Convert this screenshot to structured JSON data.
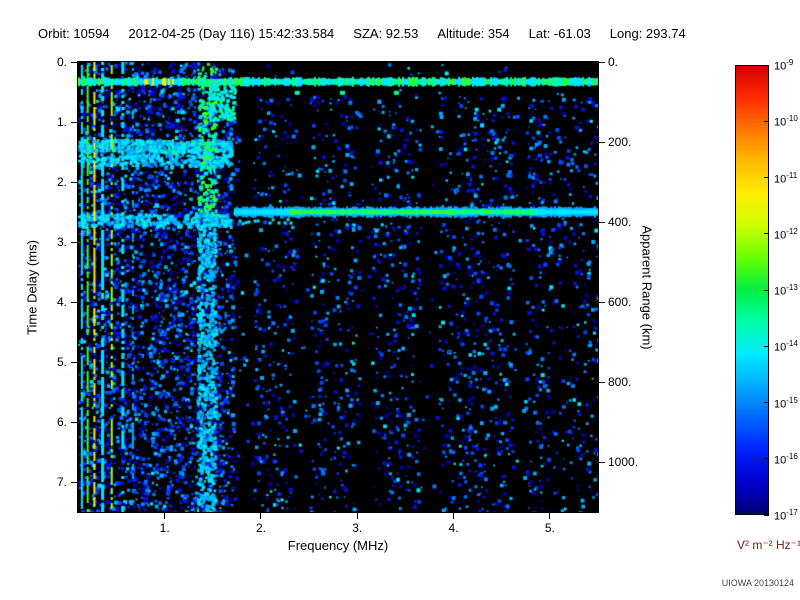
{
  "header": {
    "fields": [
      {
        "label": "Orbit:",
        "value": "10594"
      },
      {
        "label": "",
        "value": "2012-04-25 (Day 116) 15:42:33.584"
      },
      {
        "label": "SZA:",
        "value": "92.53"
      },
      {
        "label": "Altitude:",
        "value": "354"
      },
      {
        "label": "Lat:",
        "value": "-61.03"
      },
      {
        "label": "Long:",
        "value": "293.74"
      }
    ]
  },
  "footer": {
    "credit": "UIOWA 20130124"
  },
  "chart_data": {
    "type": "heatmap",
    "title": "",
    "xlabel": "Frequency (MHz)",
    "ylabel": "Time Delay (ms)",
    "ylabel_right": "Apparent Range (km)",
    "xlim": [
      0.1,
      5.5
    ],
    "ylim": [
      0,
      7.5
    ],
    "right_lim_km": [
      0,
      1125
    ],
    "x_ticks": [
      {
        "value": 1,
        "label": "1."
      },
      {
        "value": 2,
        "label": "2."
      },
      {
        "value": 3,
        "label": "3."
      },
      {
        "value": 4,
        "label": "4."
      },
      {
        "value": 5,
        "label": "5."
      }
    ],
    "y_ticks": [
      {
        "value": 0,
        "label": "0."
      },
      {
        "value": 1,
        "label": "1."
      },
      {
        "value": 2,
        "label": "2."
      },
      {
        "value": 3,
        "label": "3."
      },
      {
        "value": 4,
        "label": "4."
      },
      {
        "value": 5,
        "label": "5."
      },
      {
        "value": 6,
        "label": "6."
      },
      {
        "value": 7,
        "label": "7."
      }
    ],
    "right_ticks": [
      {
        "value": 0,
        "label": "0."
      },
      {
        "value": 200,
        "label": "200."
      },
      {
        "value": 400,
        "label": "400."
      },
      {
        "value": 600,
        "label": "600."
      },
      {
        "value": 800,
        "label": "800."
      },
      {
        "value": 1000,
        "label": "1000."
      }
    ],
    "colorbar": {
      "exponents": [
        -9,
        -10,
        -11,
        -12,
        -13,
        -14,
        -15,
        -16,
        -17
      ],
      "unit": "V² m⁻² Hz⁻¹",
      "unit_label_color": "#7b1a05",
      "colors_top_to_bottom": [
        "#d40000",
        "#ff2a00",
        "#ff7700",
        "#ffbb00",
        "#ffee00",
        "#ccff00",
        "#66ff00",
        "#00ee44",
        "#00ffaa",
        "#00eaff",
        "#00aaff",
        "#0066ff",
        "#0022ff",
        "#0000cc",
        "#000077"
      ]
    },
    "palette": [
      "#000066",
      "#0000aa",
      "#0011dd",
      "#0044ff",
      "#0077ff",
      "#00aaff",
      "#00e5ff",
      "#00ff99",
      "#44ff00",
      "#aaff00",
      "#ffee00",
      "#ff9900",
      "#ff3300"
    ],
    "background_color": "#000000",
    "features": {
      "surface_band": {
        "time_delay_ms": 0.33,
        "f_range": [
          0.1,
          5.5
        ]
      },
      "plasma_harmonics": [
        {
          "f_mhz": 0.13,
          "color_idx": 6,
          "density": 0.85,
          "w": 2
        },
        {
          "f_mhz": 0.19,
          "color_idx": 8,
          "density": 0.8,
          "w": 2
        },
        {
          "f_mhz": 0.26,
          "color_idx": 10,
          "density": 0.75,
          "w": 2
        },
        {
          "f_mhz": 0.34,
          "color_idx": 6,
          "density": 0.7,
          "w": 3
        },
        {
          "f_mhz": 0.44,
          "color_idx": 9,
          "density": 0.55,
          "w": 2
        },
        {
          "f_mhz": 0.55,
          "color_idx": 6,
          "density": 0.5,
          "w": 3
        },
        {
          "f_mhz": 0.66,
          "color_idx": 5,
          "density": 0.4,
          "w": 2
        }
      ],
      "vertical_band": {
        "f_range": [
          1.33,
          1.52
        ]
      },
      "low_freq_bands": [
        {
          "time_delay_ms": 1.38,
          "f_range": [
            0.1,
            1.68
          ],
          "strength": "strong"
        },
        {
          "time_delay_ms": 1.62,
          "f_range": [
            0.1,
            1.68
          ],
          "strength": "medium"
        },
        {
          "time_delay_ms": 2.62,
          "f_range": [
            0.1,
            1.68
          ],
          "strength": "medium"
        }
      ],
      "ionospheric_echo": {
        "time_delay_ms": 2.5,
        "f_range": [
          1.72,
          5.5
        ],
        "bright_f_range": [
          2.3,
          4.85
        ]
      },
      "dark_lanes_f": [
        [
          1.74,
          1.92
        ],
        [
          2.34,
          2.5
        ],
        [
          3.02,
          3.14
        ],
        [
          3.64,
          3.84
        ],
        [
          4.62,
          4.74
        ]
      ]
    }
  }
}
